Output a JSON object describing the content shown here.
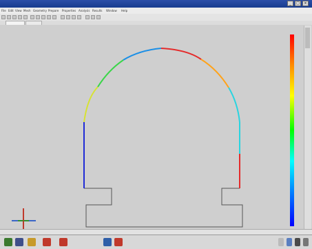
{
  "window": {
    "title": "",
    "controls": [
      "_",
      "□",
      "×"
    ]
  },
  "menu": {
    "items": [
      "File",
      "Edit",
      "View",
      "Mesh",
      "Geometry",
      "Prepare",
      "Properties",
      "Analysis",
      "Results",
      "Window",
      "Help"
    ]
  },
  "tabs": [
    {
      "label": "",
      "active": true
    },
    {
      "label": "",
      "active": false
    }
  ],
  "legend": {
    "title": "",
    "ticks": [
      "",
      "",
      "",
      "",
      "",
      "",
      "",
      "",
      "",
      "",
      "",
      "",
      "",
      "",
      ""
    ]
  },
  "status": {
    "text": ""
  },
  "taskbar": {
    "items": [
      {
        "icon": "start-icon",
        "color": "#3b7a2f"
      },
      {
        "icon": "app-icon",
        "color": "#3f4f8a"
      },
      {
        "icon": "folder-icon",
        "color": "#c79a2a"
      },
      {
        "icon": "pdf-icon",
        "color": "#c0392b"
      },
      {
        "icon": "tool-icon",
        "color": "#c0392b"
      },
      {
        "icon": "monitor-icon",
        "color": "#2f5fa8"
      },
      {
        "icon": "active-app-icon",
        "color": "#c0392b"
      }
    ],
    "active_label": ""
  },
  "colors": {
    "arc_palette": [
      "#1f2bd6",
      "#1b8fe6",
      "#29d4e0",
      "#3bd64a",
      "#d7e233",
      "#ffa31a",
      "#e42b2b"
    ]
  }
}
